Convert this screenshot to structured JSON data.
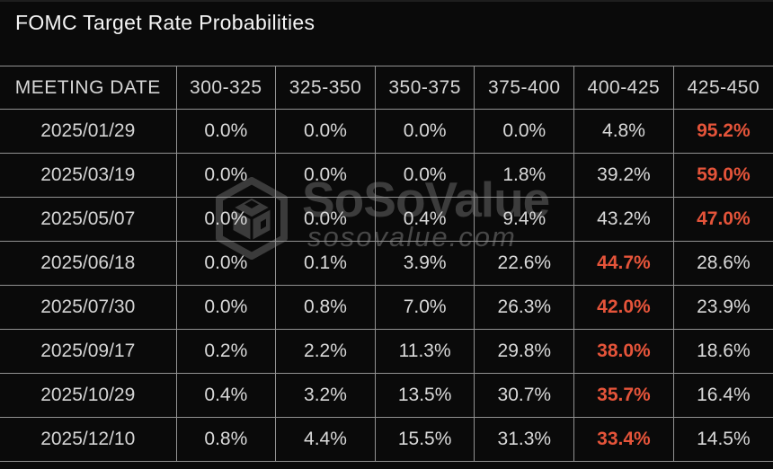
{
  "colors": {
    "background": "#0a0a0a",
    "grid_line": "#929292",
    "title_text": "#f5f5f5",
    "cell_text": "#d9d9d9",
    "highlight_text": "#e5543a",
    "watermark_text": "#3c3c3c"
  },
  "watermark": {
    "logo_icon": "sosovalue-cube-hexagon-logo",
    "brand": "SoSoValue",
    "domain": "sosovalue.com"
  },
  "chart_data": {
    "type": "table",
    "title": "FOMC Target Rate Probabilities",
    "columns": [
      "MEETING DATE",
      "300-325",
      "325-350",
      "350-375",
      "375-400",
      "400-425",
      "425-450"
    ],
    "rows": [
      {
        "date": "2025/01/29",
        "values": [
          "0.0%",
          "0.0%",
          "0.0%",
          "0.0%",
          "4.8%",
          "95.2%"
        ],
        "highlight_index": 5
      },
      {
        "date": "2025/03/19",
        "values": [
          "0.0%",
          "0.0%",
          "0.0%",
          "1.8%",
          "39.2%",
          "59.0%"
        ],
        "highlight_index": 5
      },
      {
        "date": "2025/05/07",
        "values": [
          "0.0%",
          "0.0%",
          "0.4%",
          "9.4%",
          "43.2%",
          "47.0%"
        ],
        "highlight_index": 5
      },
      {
        "date": "2025/06/18",
        "values": [
          "0.0%",
          "0.1%",
          "3.9%",
          "22.6%",
          "44.7%",
          "28.6%"
        ],
        "highlight_index": 4
      },
      {
        "date": "2025/07/30",
        "values": [
          "0.0%",
          "0.8%",
          "7.0%",
          "26.3%",
          "42.0%",
          "23.9%"
        ],
        "highlight_index": 4
      },
      {
        "date": "2025/09/17",
        "values": [
          "0.2%",
          "2.2%",
          "11.3%",
          "29.8%",
          "38.0%",
          "18.6%"
        ],
        "highlight_index": 4
      },
      {
        "date": "2025/10/29",
        "values": [
          "0.4%",
          "3.2%",
          "13.5%",
          "30.7%",
          "35.7%",
          "16.4%"
        ],
        "highlight_index": 4
      },
      {
        "date": "2025/12/10",
        "values": [
          "0.8%",
          "4.4%",
          "15.5%",
          "31.3%",
          "33.4%",
          "14.5%"
        ],
        "highlight_index": 4
      }
    ]
  }
}
